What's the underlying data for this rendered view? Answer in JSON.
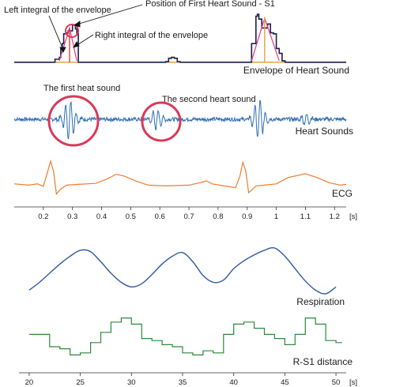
{
  "colors": {
    "envelope": "#1b1f4a",
    "integral_fill": "#e8a23a",
    "left_integral_line": "#e63a8a",
    "s1_line": "#e53b2b",
    "heart_sound": "#2f6fb8",
    "ecg": "#ee7d2e",
    "respiration": "#2f5a9e",
    "rs1": "#2c8a3a",
    "circle": "#d93a5a",
    "axis": "#333333"
  },
  "chart_data": [
    {
      "type": "line",
      "panel": "Envelope of Heart Sound",
      "x_axis": "time",
      "x": [
        0.1,
        0.22,
        0.24,
        0.255,
        0.26,
        0.265,
        0.27,
        0.28,
        0.285,
        0.3,
        0.31,
        0.315,
        0.32,
        0.6,
        0.62,
        0.63,
        0.64,
        0.65,
        0.66,
        0.67,
        0.9,
        0.915,
        0.93,
        0.935,
        0.94,
        0.95,
        0.97,
        0.98,
        0.99,
        1.0,
        1.01,
        1.02,
        1.03,
        1.24
      ],
      "y": [
        0.02,
        0.02,
        0.08,
        0.12,
        0.3,
        0.4,
        0.6,
        0.62,
        0.66,
        0.78,
        0.7,
        0.6,
        0.02,
        0.02,
        0.03,
        0.1,
        0.12,
        0.1,
        0.03,
        0.02,
        0.02,
        0.4,
        0.96,
        1.0,
        0.9,
        0.72,
        0.8,
        0.62,
        0.6,
        0.3,
        0.2,
        0.05,
        0.02,
        0.02
      ],
      "annotations": [
        "Left integral of the envelope",
        "Position of First Heart Sound - S1",
        "Right integral of the envelope"
      ],
      "s1_positions": [
        0.29,
        0.96
      ]
    },
    {
      "type": "line",
      "panel": "Heart Sounds",
      "x_axis": "time",
      "bursts": [
        {
          "center": 0.29,
          "amplitude": 1.0
        },
        {
          "center": 0.59,
          "amplitude": 0.55
        },
        {
          "center": 0.94,
          "amplitude": 1.0
        },
        {
          "center": 1.1,
          "amplitude": 0.25
        }
      ],
      "annotations": [
        "The first heat sound",
        "The second heart sound"
      ]
    },
    {
      "type": "line",
      "panel": "ECG",
      "x_axis": "time",
      "x": [
        0.1,
        0.15,
        0.18,
        0.2,
        0.215,
        0.225,
        0.235,
        0.245,
        0.26,
        0.28,
        0.32,
        0.38,
        0.42,
        0.45,
        0.48,
        0.52,
        0.56,
        0.62,
        0.7,
        0.74,
        0.76,
        0.78,
        0.82,
        0.86,
        0.875,
        0.885,
        0.895,
        0.905,
        0.915,
        0.93,
        0.96,
        1.0,
        1.04,
        1.1,
        1.14,
        1.18,
        1.22,
        1.24
      ],
      "y": [
        0.1,
        0.05,
        0.1,
        0.0,
        0.6,
        1.0,
        0.6,
        -0.3,
        -0.1,
        0.05,
        0.08,
        0.12,
        0.3,
        0.48,
        0.4,
        0.2,
        0.05,
        0.02,
        0.05,
        0.15,
        0.22,
        0.1,
        0.02,
        -0.05,
        0.4,
        0.95,
        0.6,
        -0.25,
        -0.15,
        0.02,
        0.05,
        0.1,
        0.35,
        0.5,
        0.35,
        0.15,
        0.05,
        0.08
      ]
    },
    {
      "type": "line",
      "panel": "Respiration",
      "x_axis": "t",
      "x": [
        20,
        21,
        22,
        23,
        24,
        25,
        26,
        27,
        28,
        29,
        30,
        31,
        32,
        33,
        34,
        35,
        36,
        37,
        38,
        39,
        40,
        41,
        42,
        43,
        44,
        45,
        46,
        47,
        48,
        49,
        50
      ],
      "y": [
        0.08,
        0.25,
        0.45,
        0.65,
        0.82,
        0.95,
        0.92,
        0.7,
        0.45,
        0.25,
        0.15,
        0.22,
        0.42,
        0.65,
        0.82,
        0.9,
        0.7,
        0.4,
        0.25,
        0.3,
        0.55,
        0.72,
        0.85,
        0.95,
        1.0,
        0.82,
        0.55,
        0.28,
        0.08,
        0.0,
        0.15
      ]
    },
    {
      "type": "line",
      "panel": "R-S1 distance",
      "x_axis": "t",
      "step": true,
      "x": [
        20,
        21,
        22,
        23,
        24,
        25,
        26,
        27,
        28,
        29,
        30,
        31,
        32,
        33,
        34,
        35,
        36,
        37,
        38,
        39,
        40,
        41,
        42,
        43,
        44,
        45,
        46,
        47,
        48,
        49,
        50
      ],
      "y": [
        0.55,
        0.55,
        0.25,
        0.2,
        0.05,
        0.1,
        0.35,
        0.6,
        0.85,
        0.95,
        0.8,
        0.45,
        0.4,
        0.3,
        0.25,
        0.1,
        0.05,
        0.15,
        0.1,
        0.55,
        0.8,
        0.85,
        0.7,
        0.55,
        0.45,
        0.3,
        0.55,
        0.95,
        0.8,
        0.4,
        0.35
      ]
    }
  ],
  "top_axis": {
    "ticks": [
      0.2,
      0.3,
      0.4,
      0.5,
      0.6,
      0.7,
      0.8,
      0.9,
      1.0,
      1.1,
      1.2
    ],
    "tick_labels": [
      "0.2",
      "0.3",
      "0.4",
      "0.5",
      "0.6",
      "0.7",
      "0.8",
      "0.9",
      "1",
      "1.1",
      "1.2"
    ],
    "unit": "[s]",
    "range": [
      0.1,
      1.24
    ]
  },
  "bottom_axis": {
    "ticks": [
      20,
      25,
      30,
      35,
      40,
      45,
      50
    ],
    "tick_labels": [
      "20",
      "25",
      "30",
      "35",
      "40",
      "45",
      "50"
    ],
    "unit": "[s]",
    "range": [
      19,
      51
    ]
  },
  "labels": {
    "envelope_panel": "Envelope of Heart Sound",
    "heart_panel": "Heart Sounds",
    "ecg_panel": "ECG",
    "resp_panel": "Respiration",
    "rs1_panel": "R-S1 distance",
    "left_integral": "Left integral of the envelope",
    "s1_position": "Position of First Heart Sound - S1",
    "right_integral": "Right integral of the envelope",
    "first_sound": "The first heat sound",
    "second_sound": "The second heart sound"
  }
}
